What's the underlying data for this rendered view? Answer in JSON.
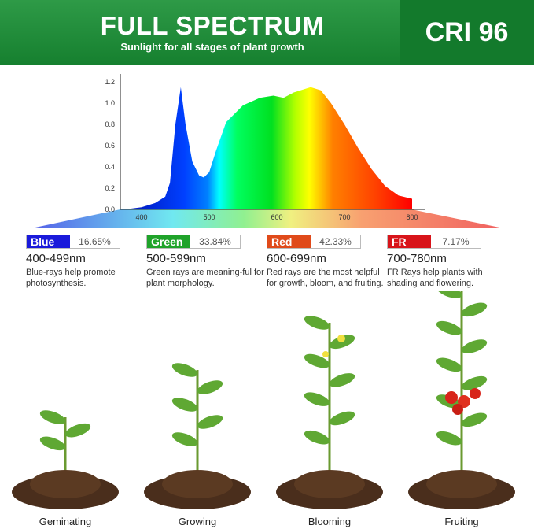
{
  "header": {
    "title": "FULL SPECTRUM",
    "subtitle": "Sunlight for all stages of plant growth",
    "cri": "CRI 96"
  },
  "chart_data": {
    "type": "area",
    "x_ticks": [
      "400",
      "500",
      "600",
      "700",
      "800"
    ],
    "y_ticks": [
      "0.0",
      "0.2",
      "0.4",
      "0.6",
      "0.8",
      "1.0",
      "1.2"
    ],
    "xlim": [
      369,
      812
    ],
    "ylim": [
      0,
      1.25
    ],
    "x": [
      375,
      400,
      420,
      435,
      442,
      450,
      458,
      465,
      475,
      485,
      492,
      500,
      510,
      525,
      550,
      575,
      595,
      610,
      625,
      650,
      665,
      680,
      700,
      720,
      740,
      760,
      780,
      800
    ],
    "y": [
      0,
      0.02,
      0.06,
      0.12,
      0.25,
      0.8,
      1.15,
      0.8,
      0.45,
      0.32,
      0.3,
      0.35,
      0.55,
      0.82,
      0.98,
      1.05,
      1.07,
      1.05,
      1.1,
      1.15,
      1.12,
      1.0,
      0.8,
      0.58,
      0.38,
      0.22,
      0.13,
      0.1
    ]
  },
  "bands": [
    {
      "name": "Blue",
      "pct": "16.65%",
      "range": "400-499nm",
      "desc": "Blue-rays help promote photosynthesis.",
      "color": "#1a1adb"
    },
    {
      "name": "Green",
      "pct": "33.84%",
      "range": "500-599nm",
      "desc": "Green rays are meaning-ful for plant morphology.",
      "color": "#1fa32a"
    },
    {
      "name": "Red",
      "pct": "42.33%",
      "range": "600-699nm",
      "desc": "Red rays are the most helpful for growth, bloom, and fruiting.",
      "color": "#e04a1a"
    },
    {
      "name": "FR",
      "pct": "7.17%",
      "range": "700-780nm",
      "desc": "FR Rays help plants with shading and flowering.",
      "color": "#d8141a"
    }
  ],
  "stages": [
    "Geminating",
    "Growing",
    "Blooming",
    "Fruiting"
  ]
}
